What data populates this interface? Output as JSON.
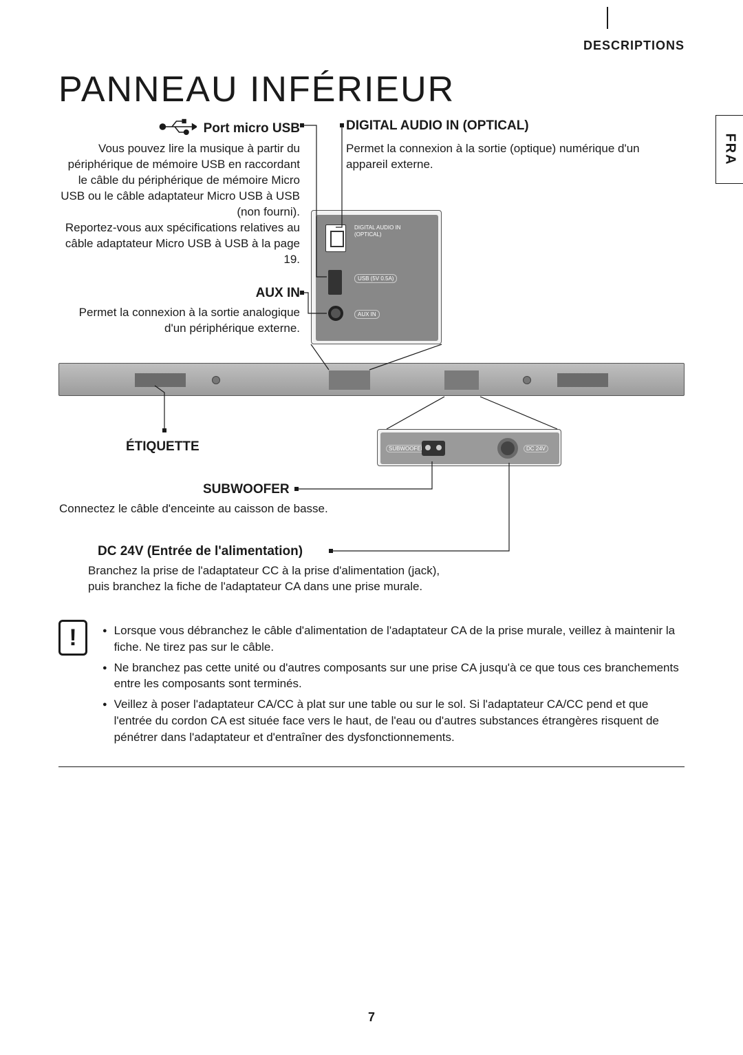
{
  "header": {
    "section": "DESCRIPTIONS",
    "lang_tab": "FRA"
  },
  "title": "PANNEAU INFÉRIEUR",
  "callouts": {
    "usb": {
      "title": "Port micro USB",
      "body": "Vous pouvez lire la musique à partir du périphérique de mémoire USB en raccordant le câble du périphérique de mémoire Micro USB ou le câble adaptateur Micro USB à USB (non fourni).\nReportez-vous aux spécifications relatives au câble adaptateur Micro USB à USB à la page 19."
    },
    "digital": {
      "title": "DIGITAL AUDIO IN (OPTICAL)",
      "body": "Permet la connexion à la sortie (optique) numérique d'un appareil externe."
    },
    "aux": {
      "title": "AUX IN",
      "body": "Permet la connexion à la sortie analogique d'un périphérique externe."
    },
    "etiquette": {
      "title": "ÉTIQUETTE"
    },
    "subwoofer": {
      "title": "SUBWOOFER",
      "body": "Connectez le câble d'enceinte au caisson de basse."
    },
    "dc": {
      "title": "DC 24V (Entrée de l'alimentation)",
      "body": "Branchez la prise de l'adaptateur CC à la prise d'alimentation (jack),\npuis branchez la fiche de l'adaptateur CA dans une prise murale."
    }
  },
  "diagram_labels": {
    "optical_line1": "DIGITAL AUDIO IN",
    "optical_line2": "(OPTICAL)",
    "usb": "USB (5V 0.5A)",
    "aux": "AUX IN",
    "subwoofer": "SUBWOOFER",
    "dc": "DC 24V"
  },
  "warnings": [
    "Lorsque vous débranchez le câble d'alimentation de l'adaptateur CA de la prise murale, veillez à maintenir la fiche. Ne tirez pas sur le câble.",
    "Ne branchez pas cette unité ou d'autres composants sur une prise CA jusqu'à ce que tous ces branchements entre les composants sont terminés.",
    "Veillez à poser l'adaptateur CA/CC à plat sur une table ou sur le sol. Si l'adaptateur CA/CC pend et que l'entrée du cordon CA est située face vers le haut, de l'eau ou d'autres substances étrangères risquent de pénétrer dans l'adaptateur et d'entraîner des dysfonctionnements."
  ],
  "page_number": "7",
  "colors": {
    "text": "#1a1a1a",
    "diagram_bg": "#f2f2f2",
    "panel_fill": "#888888",
    "bar_gradient_top": "#bfbfbf",
    "bar_gradient_bottom": "#9c9c9c"
  }
}
